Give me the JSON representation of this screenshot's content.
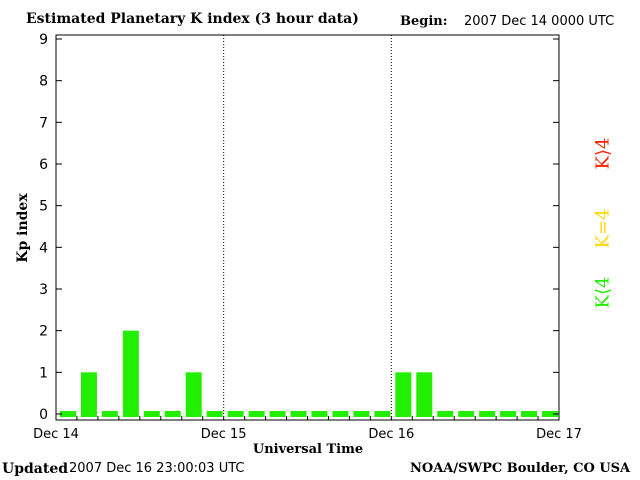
{
  "header": {
    "title": "Estimated Planetary K index (3 hour data)",
    "begin_label": "Begin:",
    "begin_value": "2007 Dec 14 0000 UTC"
  },
  "footer": {
    "updated_label": "Updated",
    "updated_value": "2007 Dec 16 23:00:03 UTC",
    "credit": "NOAA/SWPC Boulder, CO USA"
  },
  "legend": {
    "items": [
      {
        "label": "K⟩4",
        "color": "#ff2000"
      },
      {
        "label": "K=4",
        "color": "#ffd800"
      },
      {
        "label": "K⟨4",
        "color": "#22ee00"
      }
    ]
  },
  "chart_data": {
    "type": "bar",
    "title": "Estimated Planetary K index (3 hour data)",
    "xlabel": "Universal Time",
    "ylabel": "Kp index",
    "ylim": [
      0,
      9
    ],
    "y_ticks": [
      "0",
      "1",
      "2",
      "3",
      "4",
      "5",
      "6",
      "7",
      "8",
      "9"
    ],
    "x_ticks": [
      "Dec 14",
      "Dec 15",
      "Dec 16",
      "Dec 17"
    ],
    "day_separators": [
      "Dec 15",
      "Dec 16"
    ],
    "bar_color": "#22ee00",
    "intervals_per_day": 8,
    "values": [
      0,
      1,
      0,
      2,
      0,
      0,
      1,
      0,
      0,
      0,
      0,
      0,
      0,
      0,
      0,
      0,
      1,
      1,
      0,
      0,
      0,
      0,
      0,
      0
    ]
  }
}
